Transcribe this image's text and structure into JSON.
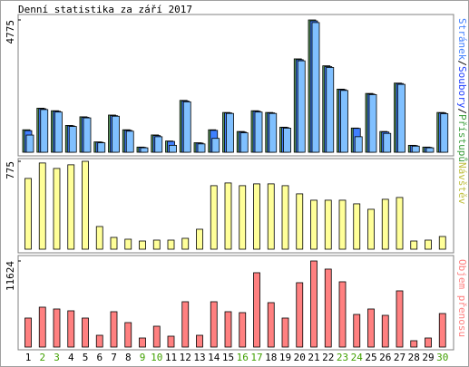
{
  "chart_data": [
    {
      "type": "bar",
      "title": "Denní statistika za září 2017",
      "ylim": [
        0,
        4775
      ],
      "yticks": [
        4775
      ],
      "legend_separator": "/",
      "series": [
        {
          "name": "Stránek",
          "color": "#80c0ff",
          "name_color": "#4080ff",
          "values": [
            620,
            1540,
            1450,
            930,
            1240,
            340,
            1300,
            760,
            160,
            560,
            250,
            1820,
            300,
            500,
            1400,
            700,
            1450,
            1400,
            870,
            3300,
            4680,
            3060,
            2230,
            560,
            2080,
            680,
            2450,
            220,
            160,
            1390
          ]
        },
        {
          "name": "Soubory",
          "color": "#4080ff",
          "name_color": "#2040ff",
          "values": [
            780,
            1570,
            1480,
            950,
            1260,
            360,
            1320,
            790,
            175,
            600,
            390,
            1850,
            330,
            790,
            1420,
            730,
            1480,
            1420,
            890,
            3340,
            4740,
            3090,
            2260,
            860,
            2100,
            730,
            2480,
            240,
            175,
            1420
          ]
        },
        {
          "name": "Přístupů",
          "color": "#60a060",
          "name_color": "#40a040",
          "values": [
            811,
            1591,
            1498,
            967,
            1279,
            374,
            1342,
            811,
            187,
            624,
            406,
            1872,
            343,
            811,
            1435,
            749,
            1498,
            1435,
            905,
            3370,
            4775,
            3120,
            2278,
            874,
            2122,
            749,
            2496,
            250,
            187,
            1435
          ]
        }
      ]
    },
    {
      "type": "bar",
      "ylim": [
        0,
        775
      ],
      "yticks": [
        775
      ],
      "series": [
        {
          "name": "Návštěv",
          "color": "#ffff99",
          "name_color": "#c0c040",
          "values": [
            624,
            760,
            712,
            744,
            775,
            200,
            104,
            88,
            72,
            80,
            80,
            96,
            176,
            560,
            584,
            560,
            576,
            576,
            560,
            488,
            432,
            432,
            432,
            400,
            352,
            440,
            456,
            72,
            80,
            112
          ]
        }
      ]
    },
    {
      "type": "bar",
      "ylim": [
        0,
        11624
      ],
      "yticks": [
        11624
      ],
      "categories": [
        "1",
        "2",
        "3",
        "4",
        "5",
        "6",
        "7",
        "8",
        "9",
        "10",
        "11",
        "12",
        "13",
        "14",
        "15",
        "16",
        "17",
        "18",
        "19",
        "20",
        "21",
        "22",
        "23",
        "24",
        "25",
        "26",
        "27",
        "28",
        "29",
        "30"
      ],
      "category_colors": [
        "#000000",
        "#40a000",
        "#40a000",
        "#000000",
        "#000000",
        "#000000",
        "#000000",
        "#000000",
        "#40a000",
        "#40a000",
        "#000000",
        "#000000",
        "#000000",
        "#000000",
        "#000000",
        "#40a000",
        "#40a000",
        "#000000",
        "#000000",
        "#000000",
        "#000000",
        "#000000",
        "#40a000",
        "#40a000",
        "#000000",
        "#000000",
        "#000000",
        "#000000",
        "#000000",
        "#40a000"
      ],
      "series": [
        {
          "name": "Objem přenosu",
          "color": "#ff8080",
          "name_color": "#ff8080",
          "values": [
            3917,
            5386,
            5141,
            4896,
            3917,
            1591,
            4774,
            3305,
            1224,
            2815,
            1469,
            6120,
            1591,
            6120,
            4774,
            4651,
            10037,
            5998,
            3917,
            8690,
            11624,
            10527,
            8813,
            4406,
            5141,
            4284,
            7589,
            857,
            1224,
            4529
          ]
        }
      ]
    }
  ]
}
